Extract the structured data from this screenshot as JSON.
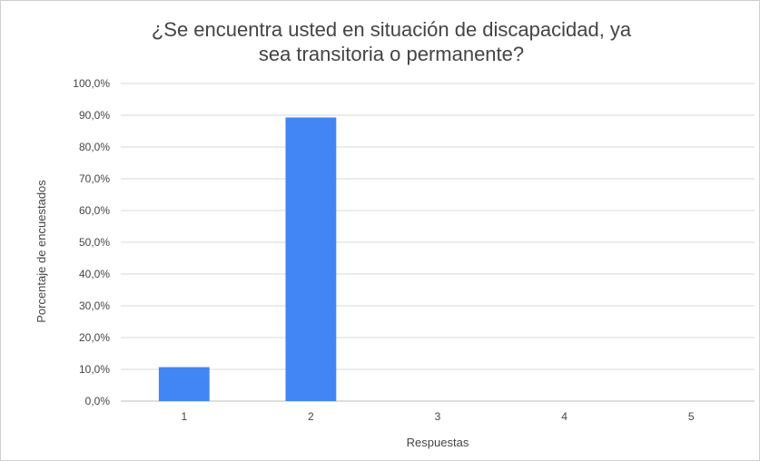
{
  "chart_data": {
    "type": "bar",
    "title": "¿Se encuentra usted en situación de discapacidad, ya\nsea transitoria o permanente?",
    "xlabel": "Respuestas",
    "ylabel": "Porcentaje de encuestados",
    "categories": [
      "1",
      "2",
      "3",
      "4",
      "5"
    ],
    "values": [
      10.7,
      89.3,
      0,
      0,
      0
    ],
    "ylim": [
      0,
      100
    ],
    "yticks": [
      "0,0%",
      "10,0%",
      "20,0%",
      "30,0%",
      "40,0%",
      "50,0%",
      "60,0%",
      "70,0%",
      "80,0%",
      "90,0%",
      "100,0%"
    ],
    "grid": true,
    "legend": "none",
    "colors": {
      "bar": "#4285f4",
      "grid": "#d9d9d9",
      "axis": "#bdbdbd",
      "text": "#444444"
    }
  }
}
